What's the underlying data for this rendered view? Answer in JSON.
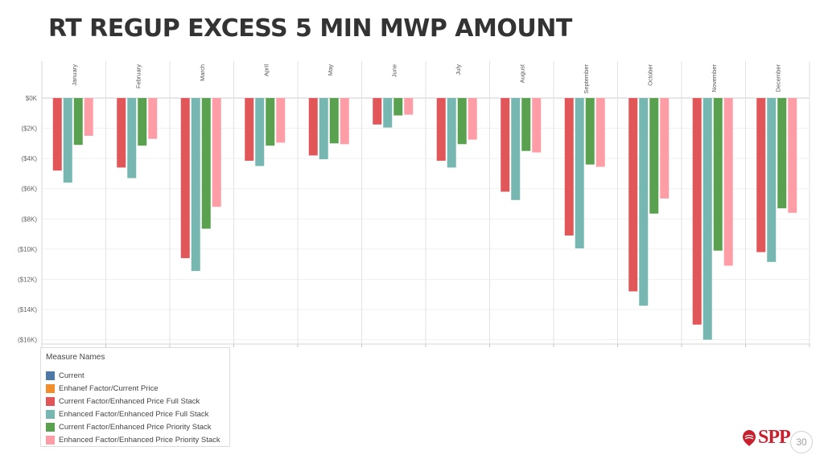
{
  "slide": {
    "title": "RT REGUP EXCESS 5 MIN MWP AMOUNT",
    "page_number": "30",
    "logo_text": "SPP"
  },
  "legend": {
    "title": "Measure Names",
    "items": [
      {
        "label": "Current",
        "color": "#4e79a7"
      },
      {
        "label": "Enhanef Factor/Current Price",
        "color": "#f28e2b"
      },
      {
        "label": "Current Factor/Enhanced Price Full Stack",
        "color": "#e15759"
      },
      {
        "label": "Enhanced Factor/Enhanced Price Full Stack",
        "color": "#76b7b2"
      },
      {
        "label": "Current Factor/Enhanced Price Priority Stack",
        "color": "#59a14f"
      },
      {
        "label": "Enhanced Factor/Enhanced Price Priority Stack",
        "color": "#ff9da7"
      }
    ]
  },
  "chart_data": {
    "type": "bar",
    "categories": [
      "January",
      "February",
      "March",
      "April",
      "May",
      "June",
      "July",
      "August",
      "September",
      "October",
      "November",
      "December"
    ],
    "series": [
      {
        "name": "Current Factor/Enhanced Price Full Stack",
        "color": "#e15759",
        "values": [
          -4800,
          -4600,
          -10600,
          -4150,
          -3800,
          -1750,
          -4150,
          -6200,
          -9100,
          -12800,
          -15000,
          -10200
        ]
      },
      {
        "name": "Enhanced Factor/Enhanced Price Full Stack",
        "color": "#76b7b2",
        "values": [
          -5600,
          -5300,
          -11450,
          -4500,
          -4050,
          -1950,
          -4600,
          -6750,
          -9950,
          -13750,
          -16000,
          -10850
        ]
      },
      {
        "name": "Current Factor/Enhanced Price Priority Stack",
        "color": "#59a14f",
        "values": [
          -3100,
          -3150,
          -8650,
          -3150,
          -3000,
          -1150,
          -3050,
          -3500,
          -4400,
          -7650,
          -10100,
          -7300
        ]
      },
      {
        "name": "Enhanced Factor/Enhanced Price Priority Stack",
        "color": "#ff9da7",
        "values": [
          -2500,
          -2700,
          -7200,
          -2950,
          -3050,
          -1100,
          -2750,
          -3600,
          -4550,
          -6650,
          -11100,
          -7600
        ]
      }
    ],
    "ylim": [
      -16500,
      0
    ],
    "yticks": [
      {
        "value": 0,
        "label": "$0K"
      },
      {
        "value": -2000,
        "label": "($2K)"
      },
      {
        "value": -4000,
        "label": "($4K)"
      },
      {
        "value": -6000,
        "label": "($6K)"
      },
      {
        "value": -8000,
        "label": "($8K)"
      },
      {
        "value": -10000,
        "label": "($10K)"
      },
      {
        "value": -12000,
        "label": "($12K)"
      },
      {
        "value": -14000,
        "label": "($14K)"
      },
      {
        "value": -16000,
        "label": "($16K)"
      }
    ],
    "grid": true,
    "legend_position": "bottom-left"
  }
}
